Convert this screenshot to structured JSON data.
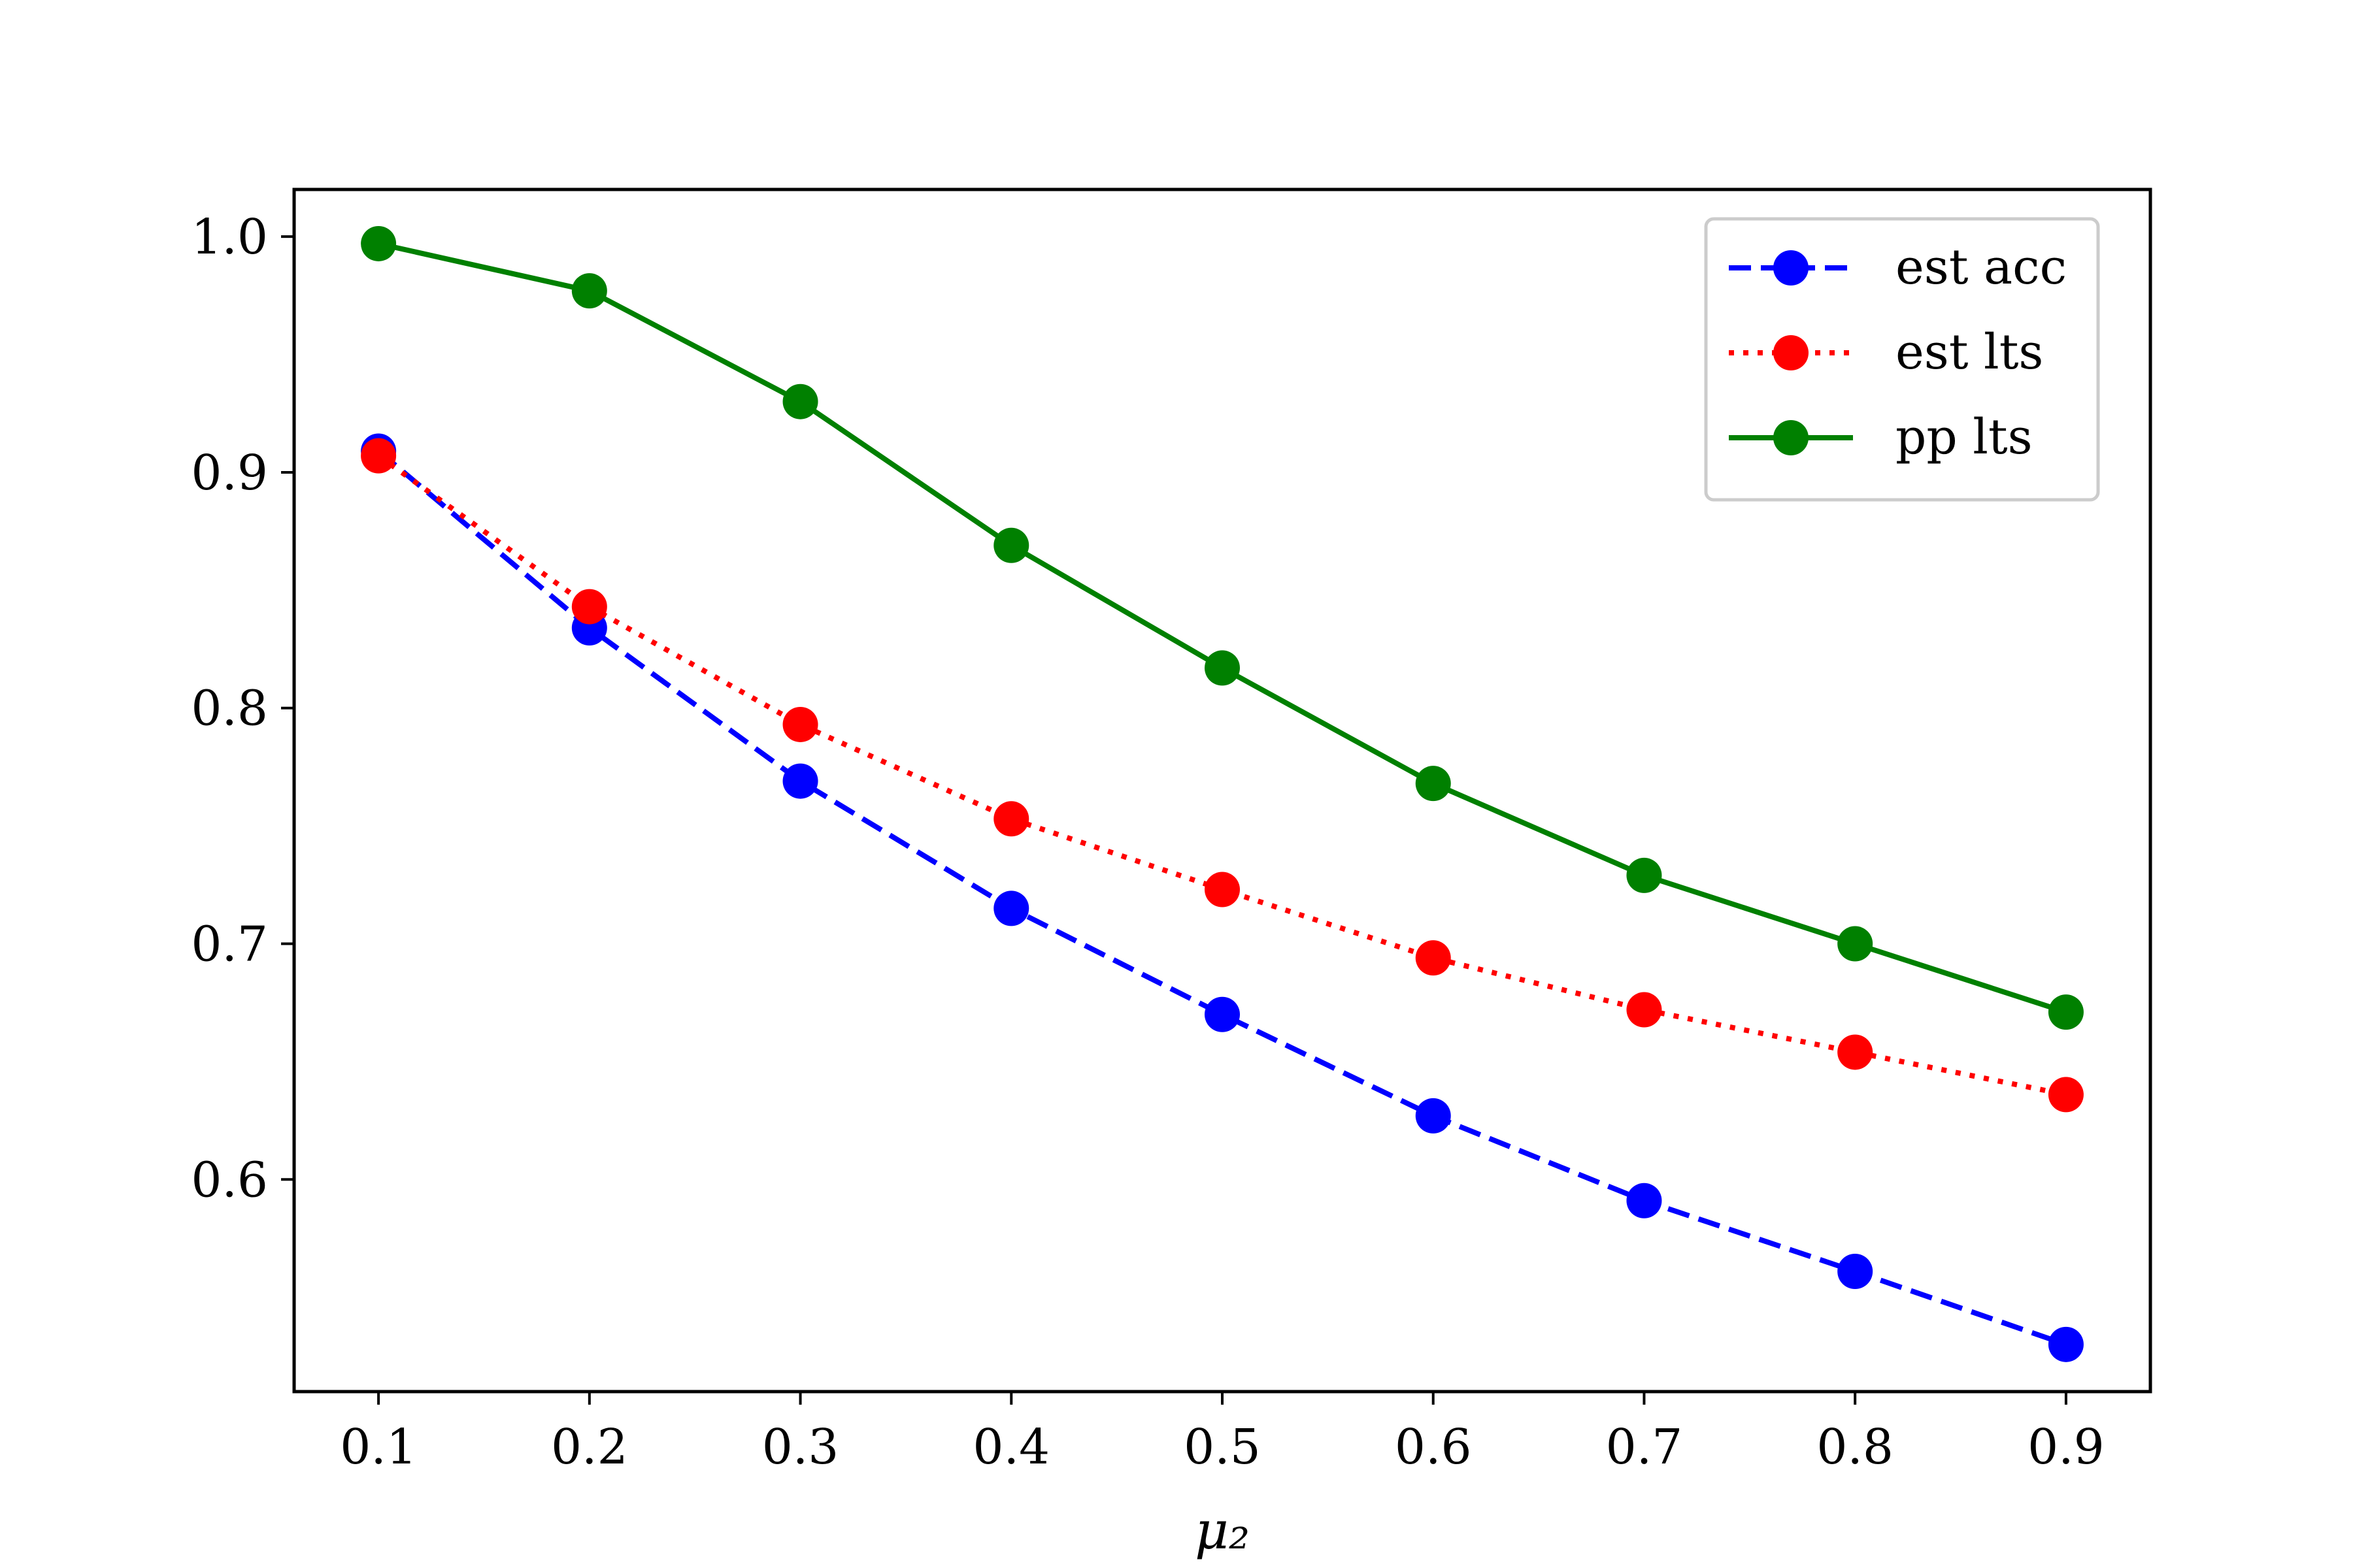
{
  "chart_data": {
    "type": "line",
    "xlabel": "μ₂",
    "ylabel": "",
    "x": [
      0.1,
      0.2,
      0.3,
      0.4,
      0.5,
      0.6,
      0.7,
      0.8,
      0.9
    ],
    "xlim": [
      0.06,
      0.94
    ],
    "ylim": [
      0.51,
      1.02
    ],
    "xticks": [
      0.1,
      0.2,
      0.3,
      0.4,
      0.5,
      0.6,
      0.7,
      0.8,
      0.9
    ],
    "xtick_labels": [
      "0.1",
      "0.2",
      "0.3",
      "0.4",
      "0.5",
      "0.6",
      "0.7",
      "0.8",
      "0.9"
    ],
    "yticks": [
      0.6,
      0.7,
      0.8,
      0.9,
      1.0
    ],
    "ytick_labels": [
      "0.6",
      "0.7",
      "0.8",
      "0.9",
      "1.0"
    ],
    "grid": false,
    "legend_position": "top-right",
    "series": [
      {
        "name": "est acc",
        "color": "#0000ff",
        "linestyle": "dashed",
        "marker": "circle",
        "values": [
          0.909,
          0.834,
          0.769,
          0.715,
          0.67,
          0.627,
          0.591,
          0.561,
          0.53
        ]
      },
      {
        "name": "est lts",
        "color": "#ff0000",
        "linestyle": "dotted",
        "marker": "circle",
        "values": [
          0.907,
          0.843,
          0.793,
          0.753,
          0.723,
          0.694,
          0.672,
          0.654,
          0.636
        ]
      },
      {
        "name": "pp lts",
        "color": "#008000",
        "linestyle": "solid",
        "marker": "circle",
        "values": [
          0.997,
          0.977,
          0.93,
          0.869,
          0.817,
          0.768,
          0.729,
          0.7,
          0.671
        ]
      }
    ]
  }
}
